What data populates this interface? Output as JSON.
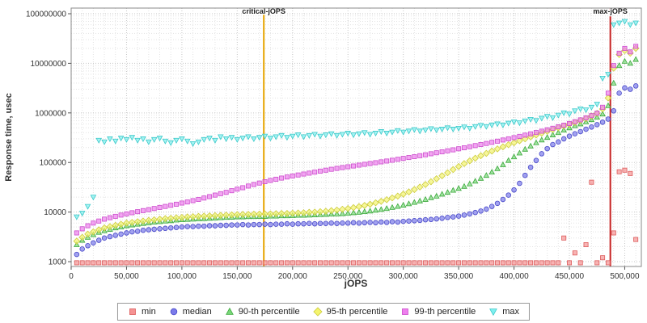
{
  "chart_data": {
    "type": "scatter",
    "title": "",
    "grid": true,
    "legend_position": "bottom",
    "x_axis": {
      "label": "jOPS",
      "lim": [
        0,
        515000
      ],
      "minor_step": 10000,
      "ticks": [
        {
          "v": 0,
          "t": "0"
        },
        {
          "v": 50000,
          "t": "50,000"
        },
        {
          "v": 100000,
          "t": "100,000"
        },
        {
          "v": 150000,
          "t": "150,000"
        },
        {
          "v": 200000,
          "t": "200,000"
        },
        {
          "v": 250000,
          "t": "250,000"
        },
        {
          "v": 300000,
          "t": "300,000"
        },
        {
          "v": 350000,
          "t": "350,000"
        },
        {
          "v": 400000,
          "t": "400,000"
        },
        {
          "v": 450000,
          "t": "450,000"
        },
        {
          "v": 500000,
          "t": "500,000"
        }
      ]
    },
    "y_axis": {
      "label": "Response time, usec",
      "scale": "log",
      "lim": [
        800,
        130000000
      ],
      "ticks": [
        {
          "v": 1000,
          "t": "1000"
        },
        {
          "v": 10000,
          "t": "10000"
        },
        {
          "v": 100000,
          "t": "100000"
        },
        {
          "v": 1000000,
          "t": "1000000"
        },
        {
          "v": 10000000,
          "t": "10000000"
        },
        {
          "v": 100000000,
          "t": "100000000"
        }
      ]
    },
    "annotations": [
      {
        "label": "critical-jOPS",
        "x": 174000,
        "color": "#e7a400",
        "text_color": "#222222"
      },
      {
        "label": "max-jOPS",
        "x": 487000,
        "color": "#c62222",
        "text_color": "#222222"
      }
    ],
    "x_start": 5000,
    "x_step": 5000,
    "series": [
      {
        "name": "min",
        "marker": "square",
        "fill": "#f59393",
        "stroke": "#dd5c5c",
        "values": [
          950,
          950,
          950,
          950,
          950,
          950,
          950,
          950,
          950,
          950,
          950,
          950,
          950,
          950,
          950,
          950,
          950,
          950,
          950,
          950,
          950,
          950,
          950,
          950,
          950,
          950,
          950,
          950,
          950,
          950,
          950,
          950,
          950,
          950,
          950,
          950,
          950,
          950,
          950,
          950,
          950,
          950,
          950,
          950,
          950,
          950,
          950,
          950,
          950,
          950,
          950,
          950,
          950,
          950,
          950,
          950,
          950,
          950,
          950,
          950,
          950,
          950,
          950,
          950,
          950,
          950,
          950,
          950,
          950,
          950,
          950,
          950,
          950,
          950,
          950,
          950,
          950,
          950,
          950,
          950,
          950,
          950,
          950,
          950,
          950,
          950,
          950,
          950,
          3000,
          950,
          1500,
          950,
          2200,
          40000,
          950,
          1200,
          950,
          3800,
          65000,
          70000,
          60000,
          2800
        ]
      },
      {
        "name": "median",
        "marker": "circle",
        "fill": "#7b7bea",
        "stroke": "#4848c8",
        "values": [
          1400,
          1800,
          2100,
          2400,
          2700,
          3000,
          3200,
          3400,
          3600,
          3800,
          4000,
          4100,
          4300,
          4400,
          4500,
          4600,
          4700,
          4800,
          4900,
          5000,
          5100,
          5100,
          5200,
          5200,
          5300,
          5300,
          5400,
          5400,
          5500,
          5500,
          5600,
          5500,
          5600,
          5600,
          5700,
          5600,
          5700,
          5700,
          5800,
          5700,
          5800,
          5800,
          5900,
          5800,
          5900,
          5900,
          6000,
          5900,
          6000,
          6000,
          6100,
          6000,
          6100,
          6200,
          6100,
          6300,
          6200,
          6400,
          6300,
          6500,
          6600,
          6700,
          6800,
          7000,
          7100,
          7300,
          7500,
          7800,
          8000,
          8300,
          8700,
          9200,
          9800,
          10500,
          11500,
          13000,
          15000,
          18000,
          22000,
          28000,
          38000,
          55000,
          80000,
          110000,
          150000,
          190000,
          230000,
          260000,
          300000,
          340000,
          380000,
          420000,
          470000,
          520000,
          580000,
          650000,
          750000,
          1100000,
          2500000,
          3200000,
          3000000,
          3500000
        ]
      },
      {
        "name": "90-th percentile",
        "marker": "triangle-up",
        "fill": "#79d779",
        "stroke": "#3aa83a",
        "values": [
          2200,
          2700,
          3100,
          3500,
          3900,
          4200,
          4500,
          4800,
          5000,
          5300,
          5500,
          5700,
          5900,
          6100,
          6300,
          6400,
          6600,
          6700,
          6900,
          7000,
          7100,
          7200,
          7300,
          7400,
          7500,
          7600,
          7700,
          7800,
          7900,
          8000,
          8000,
          8100,
          8100,
          8200,
          8200,
          8300,
          8300,
          8400,
          8400,
          8500,
          8600,
          8600,
          8700,
          8800,
          8900,
          9000,
          9100,
          9200,
          9300,
          9500,
          9700,
          9900,
          10200,
          10500,
          10900,
          11300,
          11800,
          12400,
          13000,
          13800,
          14700,
          15700,
          16800,
          18000,
          19500,
          21000,
          23000,
          25000,
          27500,
          30000,
          33000,
          37000,
          42000,
          48000,
          55000,
          64000,
          75000,
          90000,
          110000,
          130000,
          155000,
          185000,
          215000,
          250000,
          285000,
          320000,
          360000,
          400000,
          450000,
          500000,
          550000,
          600000,
          660000,
          730000,
          820000,
          950000,
          1400000,
          4000000,
          9000000,
          11000000,
          10000000,
          12000000
        ]
      },
      {
        "name": "95-th percentile",
        "marker": "diamond",
        "fill": "#f4f46d",
        "stroke": "#cbcb3a",
        "values": [
          2600,
          3100,
          3600,
          4000,
          4400,
          4800,
          5100,
          5400,
          5700,
          6000,
          6200,
          6400,
          6600,
          6800,
          7000,
          7200,
          7400,
          7500,
          7700,
          7800,
          8000,
          8100,
          8200,
          8300,
          8400,
          8500,
          8600,
          8700,
          8800,
          8900,
          9000,
          9000,
          9100,
          9100,
          9200,
          9200,
          9300,
          9400,
          9400,
          9500,
          9600,
          9700,
          9900,
          10000,
          10200,
          10400,
          10700,
          11000,
          11400,
          11800,
          12300,
          12900,
          13600,
          14400,
          15400,
          16500,
          17800,
          19300,
          21000,
          23000,
          25500,
          28500,
          32000,
          36000,
          41000,
          47000,
          54000,
          62000,
          72000,
          83000,
          95000,
          108000,
          122000,
          137000,
          153000,
          170000,
          188000,
          207000,
          228000,
          250000,
          274000,
          300000,
          328000,
          358000,
          390000,
          425000,
          462000,
          502000,
          545000,
          590000,
          640000,
          700000,
          770000,
          860000,
          980000,
          1200000,
          2000000,
          8000000,
          15000000,
          18000000,
          16000000,
          20000000
        ]
      },
      {
        "name": "99-th percentile",
        "marker": "square",
        "fill": "#ee7fee",
        "stroke": "#cc4ccc",
        "values": [
          3800,
          4600,
          5300,
          6000,
          6600,
          7200,
          7700,
          8200,
          8700,
          9200,
          9700,
          10200,
          10700,
          11200,
          11800,
          12400,
          13000,
          13700,
          14400,
          15200,
          16000,
          17000,
          18000,
          19200,
          20500,
          22000,
          23500,
          25000,
          27000,
          29000,
          31000,
          33500,
          36000,
          38500,
          41000,
          43500,
          46000,
          48500,
          51000,
          53500,
          56000,
          58500,
          61000,
          64000,
          67000,
          70000,
          73000,
          76000,
          79000,
          82000,
          85000,
          88500,
          92000,
          95500,
          99000,
          103000,
          107000,
          111000,
          116000,
          121000,
          126000,
          131000,
          137000,
          143000,
          150000,
          157000,
          164000,
          172000,
          180000,
          189000,
          198000,
          208000,
          219000,
          230000,
          242000,
          255000,
          269000,
          284000,
          300000,
          317000,
          336000,
          356000,
          378000,
          402000,
          428000,
          457000,
          490000,
          526000,
          566000,
          612000,
          664000,
          724000,
          795000,
          880000,
          990000,
          1300000,
          2500000,
          9000000,
          16000000,
          20000000,
          17000000,
          22000000
        ]
      },
      {
        "name": "max",
        "marker": "triangle-down",
        "fill": "#7ff0f0",
        "stroke": "#3cc9c9",
        "values": [
          8000,
          9500,
          13000,
          20000,
          280000,
          260000,
          300000,
          270000,
          310000,
          290000,
          320000,
          280000,
          300000,
          260000,
          290000,
          310000,
          270000,
          250000,
          280000,
          300000,
          270000,
          240000,
          260000,
          290000,
          310000,
          280000,
          330000,
          300000,
          320000,
          290000,
          310000,
          330000,
          300000,
          320000,
          340000,
          310000,
          330000,
          350000,
          320000,
          340000,
          360000,
          330000,
          350000,
          370000,
          340000,
          360000,
          380000,
          350000,
          370000,
          390000,
          360000,
          380000,
          400000,
          370000,
          390000,
          420000,
          390000,
          410000,
          440000,
          410000,
          430000,
          460000,
          430000,
          450000,
          480000,
          450000,
          470000,
          500000,
          470000,
          490000,
          520000,
          490000,
          530000,
          560000,
          530000,
          570000,
          600000,
          570000,
          620000,
          660000,
          630000,
          690000,
          740000,
          700000,
          780000,
          850000,
          800000,
          900000,
          1000000,
          950000,
          1100000,
          1200000,
          1150000,
          1300000,
          1500000,
          5000000,
          6000000,
          60000000,
          65000000,
          70000000,
          60000000,
          65000000
        ]
      }
    ]
  }
}
